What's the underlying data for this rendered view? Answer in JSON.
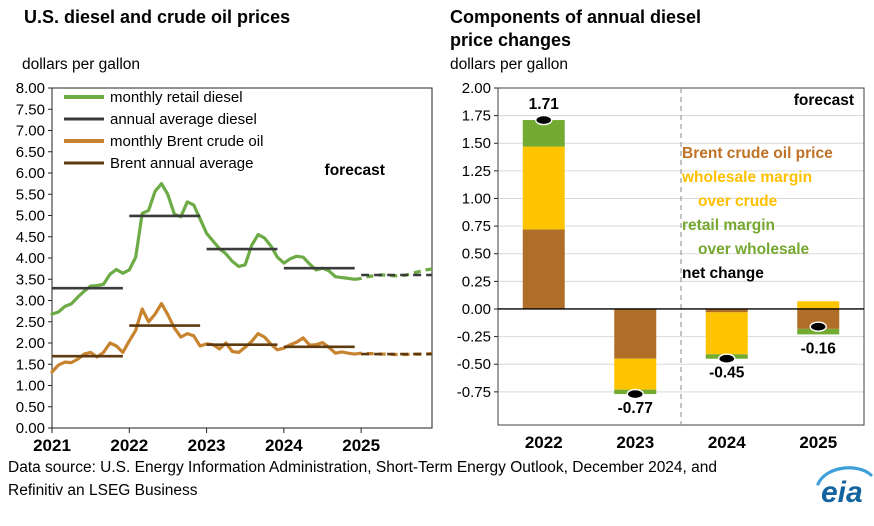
{
  "left_panel": {
    "title": "U.S. diesel and crude oil prices",
    "unit": "dollars per gallon",
    "forecast_label": "forecast"
  },
  "right_panel": {
    "title": "Components of annual diesel price changes",
    "unit": "dollars per gallon",
    "forecast_label": "forecast"
  },
  "footer": {
    "source": "Data source: U.S. Energy Information Administration, Short-Term Energy Outlook, December 2024, and Refinitiv an LSEG Business",
    "logo_text": "eia"
  },
  "colors": {
    "retail_diesel_green": "#6cab45",
    "annual_diesel_black": "#3b3b3b",
    "brent_orange": "#c8832f",
    "brent_annual_brown": "#5e3a10",
    "bar_brown": "#b06f28",
    "bar_yellow": "#ffc400",
    "bar_green": "#72aa32",
    "net_black": "#000000",
    "gridline": "#d9d9d9",
    "divider": "#9d9d9d"
  },
  "chart_data": [
    {
      "type": "line",
      "title": "U.S. diesel and crude oil prices",
      "ylabel": "dollars per gallon",
      "ylim": [
        0,
        8
      ],
      "ytick_step": 0.5,
      "x_labels": [
        "2021",
        "2022",
        "2023",
        "2024",
        "2025"
      ],
      "forecast_label": "forecast",
      "forecast_start_index": 47,
      "grid": false,
      "legend_position": "top-left-inside",
      "series": [
        {
          "name": "monthly retail diesel",
          "kind": "monthly",
          "color": "#6cab45",
          "width": 3.2,
          "values": [
            2.68,
            2.73,
            2.86,
            2.92,
            3.08,
            3.22,
            3.34,
            3.35,
            3.38,
            3.62,
            3.73,
            3.64,
            3.72,
            4.02,
            5.05,
            5.12,
            5.57,
            5.75,
            5.49,
            5.03,
            4.97,
            5.32,
            5.25,
            4.92,
            4.58,
            4.4,
            4.22,
            4.1,
            3.92,
            3.8,
            3.84,
            4.3,
            4.55,
            4.47,
            4.28,
            4.02,
            3.88,
            3.98,
            4.04,
            4.02,
            3.86,
            3.72,
            3.76,
            3.7,
            3.56,
            3.54,
            3.52,
            3.5,
            3.52,
            3.56,
            3.58,
            3.6,
            3.6,
            3.58,
            3.58,
            3.6,
            3.64,
            3.68,
            3.72,
            3.74
          ]
        },
        {
          "name": "annual average diesel",
          "kind": "annual",
          "color": "#3b3b3b",
          "width": 2.6,
          "annual": [
            3.29,
            4.99,
            4.21,
            3.76,
            3.6
          ]
        },
        {
          "name": "monthly Brent crude oil",
          "kind": "monthly",
          "color": "#c8832f",
          "width": 3.2,
          "values": [
            1.32,
            1.48,
            1.55,
            1.54,
            1.62,
            1.74,
            1.78,
            1.67,
            1.78,
            2.0,
            1.93,
            1.78,
            2.05,
            2.3,
            2.8,
            2.5,
            2.68,
            2.93,
            2.66,
            2.35,
            2.14,
            2.22,
            2.17,
            1.93,
            1.98,
            1.96,
            1.86,
            2.0,
            1.8,
            1.78,
            1.9,
            2.04,
            2.22,
            2.14,
            1.97,
            1.84,
            1.88,
            1.96,
            2.02,
            2.12,
            1.95,
            1.96,
            2.01,
            1.9,
            1.76,
            1.79,
            1.76,
            1.74,
            1.76,
            1.75,
            1.75,
            1.74,
            1.74,
            1.73,
            1.73,
            1.73,
            1.74,
            1.74,
            1.74,
            1.75
          ]
        },
        {
          "name": "Brent annual average",
          "kind": "annual",
          "color": "#5e3a10",
          "width": 2.6,
          "annual": [
            1.69,
            2.41,
            1.96,
            1.91,
            1.74
          ]
        }
      ]
    },
    {
      "type": "bar",
      "title": "Components of annual diesel price changes",
      "ylabel": "dollars per gallon",
      "ylim": [
        -1.05,
        2.0
      ],
      "ytick_step": 0.25,
      "ytick_label_max": 2.0,
      "ytick_label_min": -0.75,
      "grid": true,
      "categories": [
        "2022",
        "2023",
        "2024",
        "2025"
      ],
      "forecast_label": "forecast",
      "forecast_divider_after_index": 1,
      "series": [
        {
          "name": "Brent crude oil price",
          "color": "#b06f28",
          "values": [
            0.72,
            -0.45,
            -0.03,
            -0.18
          ]
        },
        {
          "name": "wholesale margin over crude",
          "color": "#ffc400",
          "values": [
            0.75,
            -0.28,
            -0.38,
            0.07
          ]
        },
        {
          "name": "retail margin over wholesale",
          "color": "#72aa32",
          "values": [
            0.24,
            -0.04,
            -0.04,
            -0.05
          ]
        }
      ],
      "net": {
        "name": "net change",
        "color": "#000000",
        "values": [
          1.71,
          -0.77,
          -0.45,
          -0.16
        ],
        "labels": [
          "1.71",
          "-0.77",
          "-0.45",
          "-0.16"
        ]
      },
      "legend_lines": [
        {
          "text": "Brent crude oil price",
          "color": "#bf7226",
          "indent": 0
        },
        {
          "text": "wholesale margin",
          "color": "#ffc000",
          "indent": 0
        },
        {
          "text": "over crude",
          "color": "#ffc000",
          "indent": 16
        },
        {
          "text": "retail margin",
          "color": "#76a72f",
          "indent": 0
        },
        {
          "text": "over wholesale",
          "color": "#76a72f",
          "indent": 16
        },
        {
          "text": "net change",
          "color": "#000000",
          "indent": 0
        }
      ]
    }
  ]
}
